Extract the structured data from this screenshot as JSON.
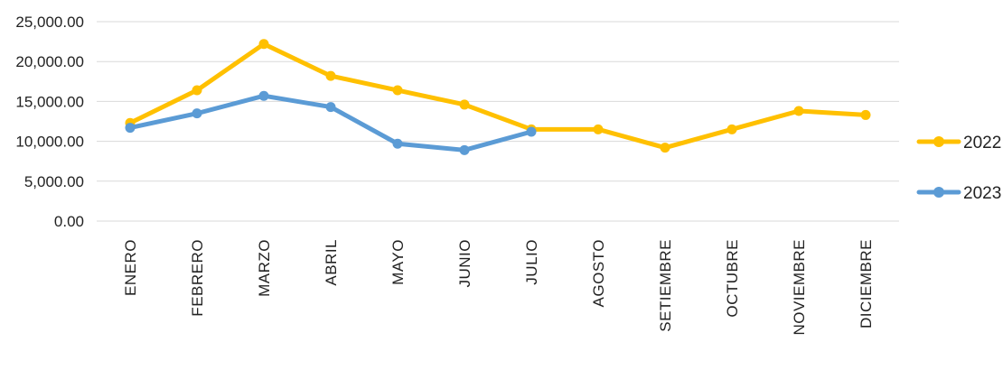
{
  "chart_data": {
    "type": "line",
    "title": "",
    "xlabel": "",
    "ylabel": "",
    "categories": [
      "ENERO",
      "FEBRERO",
      "MARZO",
      "ABRIL",
      "MAYO",
      "JUNIO",
      "JULIO",
      "AGOSTO",
      "SETIEMBRE",
      "OCTUBRE",
      "NOVIEMBRE",
      "DICIEMBRE"
    ],
    "yticks": [
      "0.00",
      "5,000.00",
      "10,000.00",
      "15,000.00",
      "20,000.00",
      "25,000.00"
    ],
    "ylim": [
      0,
      25000
    ],
    "grid": true,
    "legend_position": "right",
    "series": [
      {
        "name": "2022",
        "color": "#FFC000",
        "values": [
          12300,
          16400,
          22200,
          18200,
          16400,
          14600,
          11500,
          11500,
          9200,
          11500,
          13800,
          13300
        ]
      },
      {
        "name": "2023",
        "color": "#5B9BD5",
        "values": [
          11700,
          13500,
          15700,
          14300,
          9700,
          8900,
          11200,
          null,
          null,
          null,
          null,
          null
        ]
      }
    ]
  }
}
